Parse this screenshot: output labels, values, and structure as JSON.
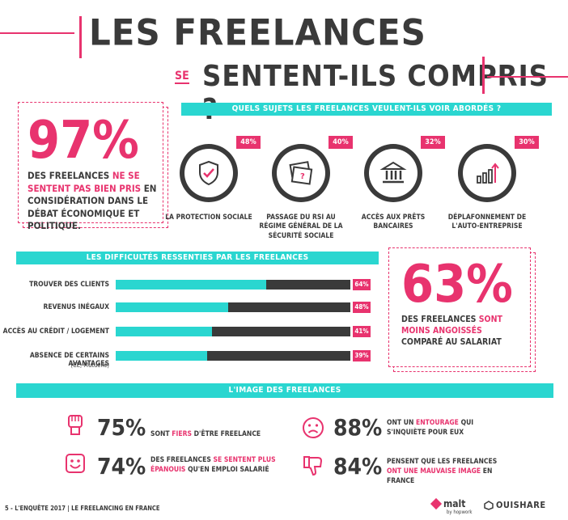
{
  "title": {
    "line1": "LES FREELANCES",
    "se": "SE",
    "line2": "SENTENT-ILS COMPRIS ?"
  },
  "stat97": {
    "value": "97%",
    "text_a": "DES FREELANCES ",
    "text_b": "NE SE SENTENT PAS BIEN PRIS",
    "text_c": " EN CONSIDÉRATION DANS LE DÉBAT ÉCONOMIQUE ET POLITIQUE."
  },
  "topics": {
    "banner": "QUELS SUJETS LES FREELANCES VEULENT-ILS VOIR ABORDÉS ?",
    "items": [
      {
        "pct": "48%",
        "label": "LA PROTECTION SOCIALE",
        "icon": "shield-check-icon"
      },
      {
        "pct": "40%",
        "label": "PASSAGE DU RSI AU RÉGIME GÉNÉRAL DE LA SÉCURITÉ SOCIALE",
        "icon": "documents-icon"
      },
      {
        "pct": "32%",
        "label": "ACCÈS AUX PRÊTS BANCAIRES",
        "icon": "bank-icon"
      },
      {
        "pct": "30%",
        "label": "DÉPLAFONNEMENT DE L'AUTO-ENTREPRISE",
        "icon": "growth-chart-icon"
      }
    ]
  },
  "difficulties": {
    "banner": "LES DIFFICULTÉS RESSENTIES PAR LES FREELANCES",
    "items": [
      {
        "label": "TROUVER DES CLIENTS",
        "sub": "",
        "value": 64,
        "display": "64%"
      },
      {
        "label": "REVENUS INÉGAUX",
        "sub": "",
        "value": 48,
        "display": "48%"
      },
      {
        "label": "ACCÈS AU CRÉDIT / LOGEMENT",
        "sub": "",
        "value": 41,
        "display": "41%"
      },
      {
        "label": "ABSENCE DE CERTAINS AVANTAGES",
        "sub": "(CE, Mutuelle)",
        "value": 39,
        "display": "39%"
      }
    ]
  },
  "stat63": {
    "value": "63%",
    "text_a": "DES FREELANCES ",
    "text_b": "SONT MOINS ANGOISSÉS",
    "text_c": " COMPARÉ AU SALARIAT"
  },
  "image": {
    "banner": "L'IMAGE DES FREELANCES",
    "items": [
      {
        "pct": "75%",
        "a": "SONT ",
        "b": "FIERS",
        "c": " D'ÊTRE FREELANCE",
        "icon": "fist-icon"
      },
      {
        "pct": "74%",
        "a": "DES FREELANCES ",
        "b": "SE SENTENT PLUS ÉPANOUIS",
        "c": " QU'EN EMPLOI SALARIÉ",
        "icon": "happy-face-icon"
      },
      {
        "pct": "88%",
        "a": "ONT UN ",
        "b": "ENTOURAGE",
        "c": " QUI S'INQUIÈTE POUR EUX",
        "icon": "worried-face-icon"
      },
      {
        "pct": "84%",
        "a": "PENSENT QUE LES FREELANCES ",
        "b": "ONT UNE MAUVAISE IMAGE",
        "c": " EN FRANCE",
        "icon": "thumbs-down-icon"
      }
    ]
  },
  "footer": {
    "text": "5 - L'ENQUÊTE 2017 | LE FREELANCING EN FRANCE",
    "logo1": "malt",
    "logo1_sub": "by hopwork",
    "logo2": "OUISHARE"
  },
  "colors": {
    "accent": "#e8336e",
    "teal": "#2ad6d0",
    "dark": "#3a3a3a"
  }
}
